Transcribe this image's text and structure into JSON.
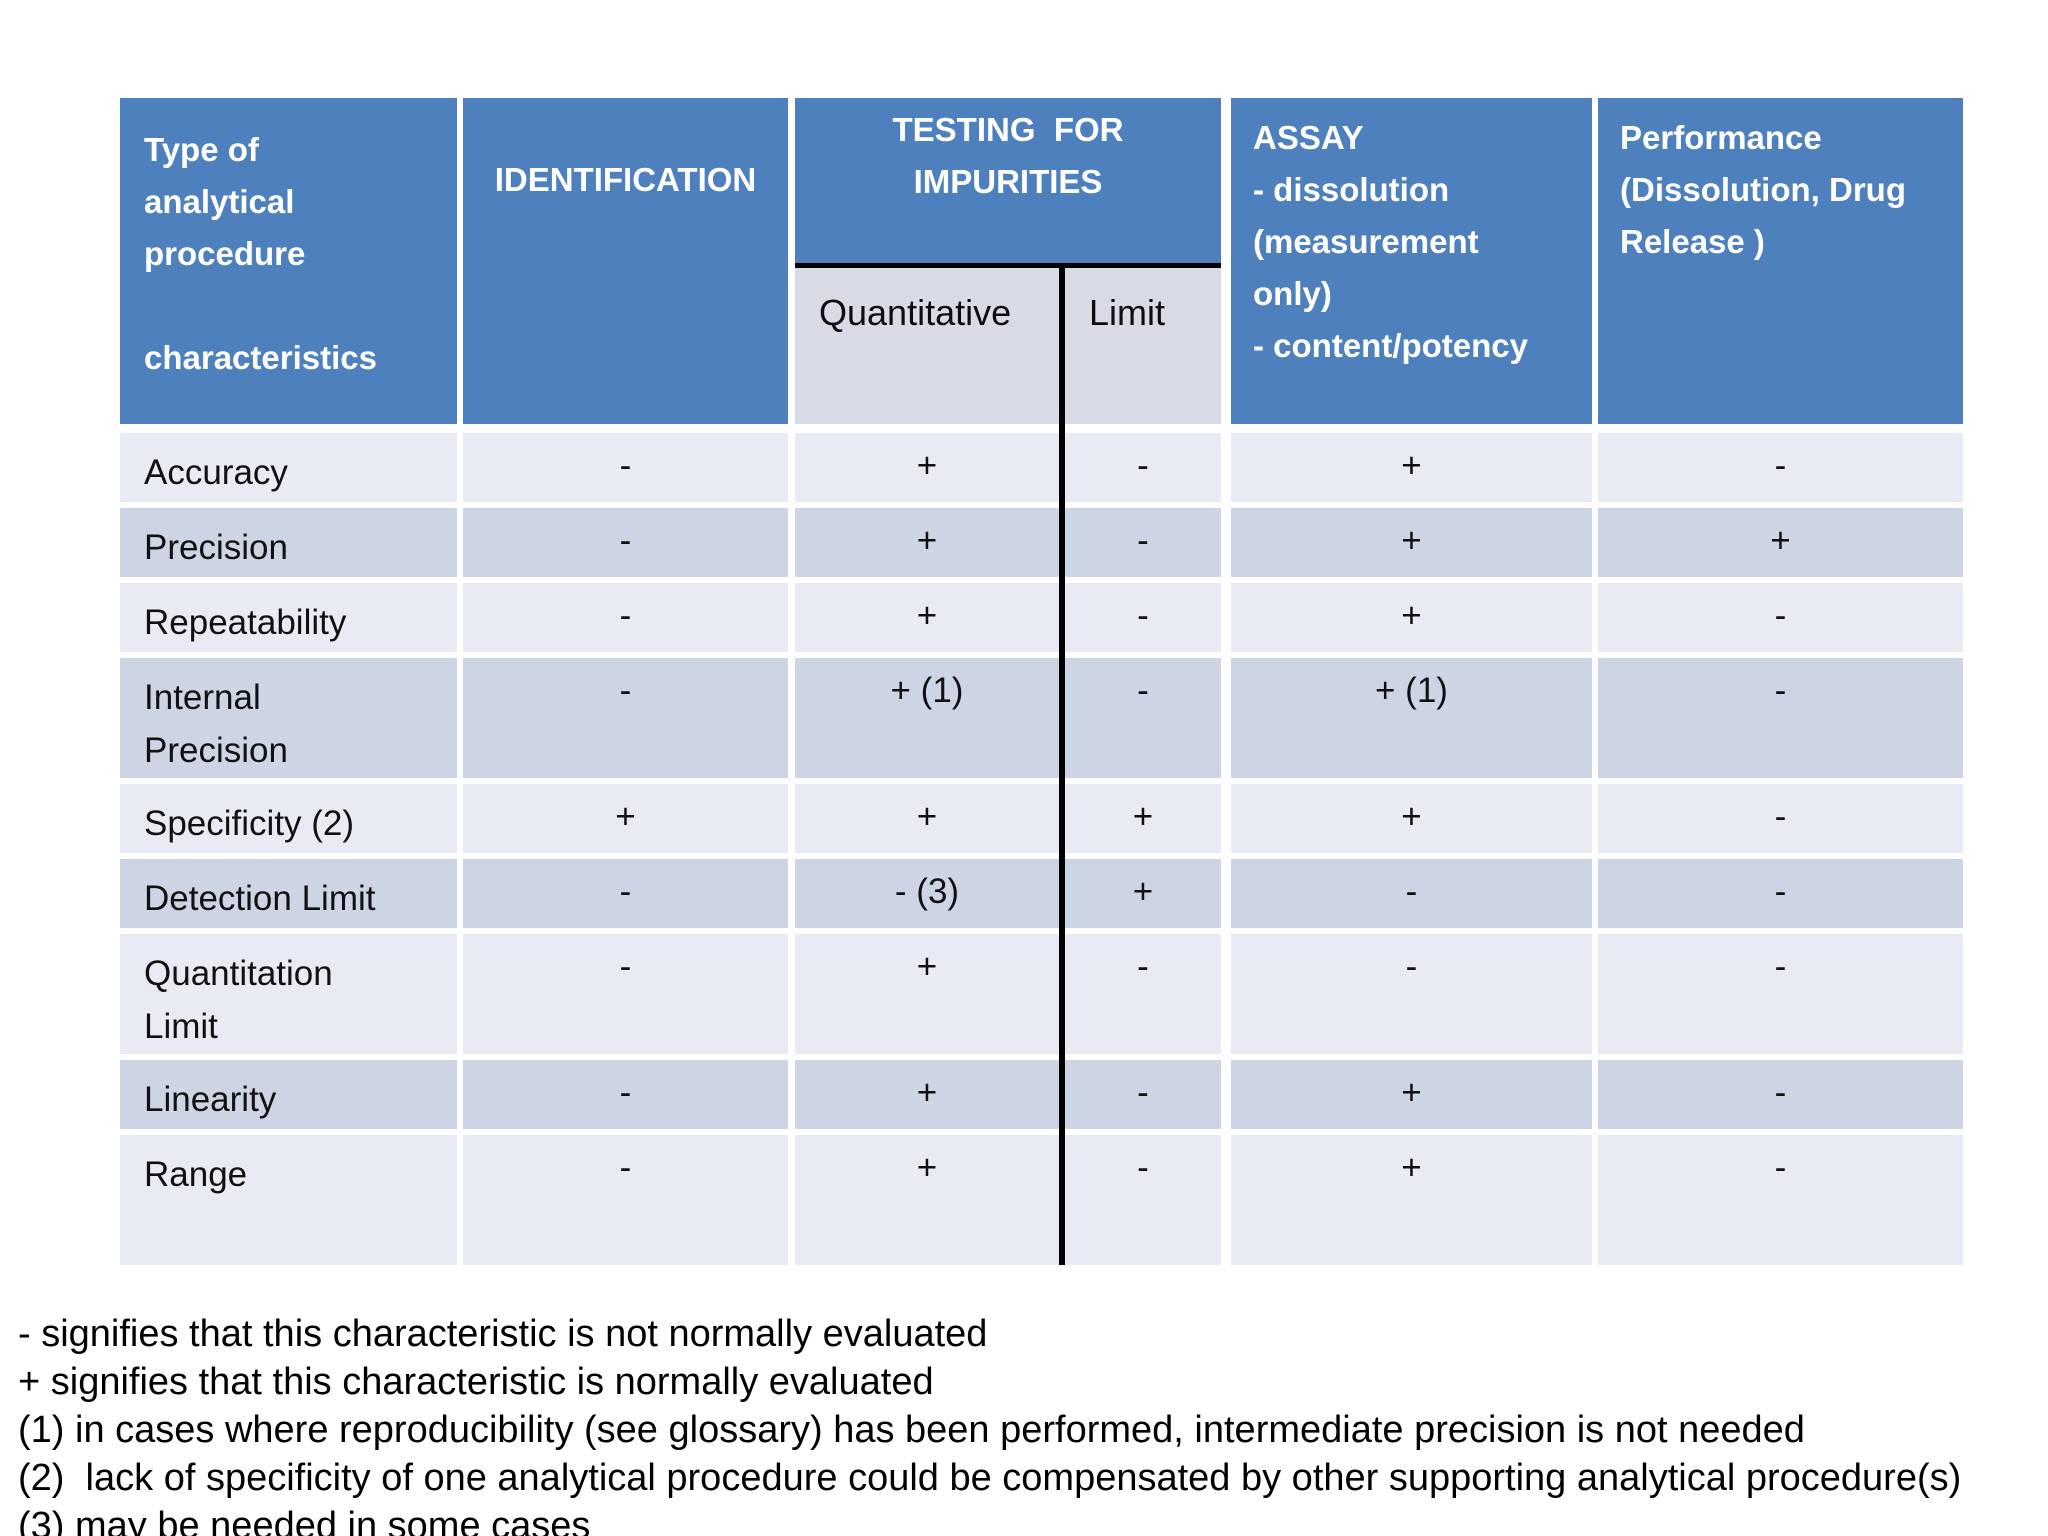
{
  "colors": {
    "header_bg": "#4E80BD",
    "row_light": "#E9EBF4",
    "row_dark": "#CDD4E3",
    "subheader_bg": "#D8DBE6",
    "divider": "#000000"
  },
  "table": {
    "header": {
      "characteristics": "Type of\nanalytical\nprocedure\n\ncharacteristics",
      "identification": "IDENTIFICATION",
      "impurities": "TESTING  FOR\nIMPURITIES",
      "impurities_sub": {
        "quantitative": "Quantitative",
        "limit": "Limit"
      },
      "assay": "ASSAY\n- dissolution\n(measurement\nonly)\n- content/potency",
      "performance": "Performance\n(Dissolution, Drug\nRelease )"
    },
    "rows": [
      {
        "label": "Accuracy",
        "identification": "-",
        "quantitative": "+",
        "limit": "-",
        "assay": "+",
        "performance": "-"
      },
      {
        "label": "Precision",
        "identification": "-",
        "quantitative": "+",
        "limit": "-",
        "assay": "+",
        "performance": "+"
      },
      {
        "label": "Repeatability",
        "identification": "-",
        "quantitative": "+",
        "limit": "-",
        "assay": "+",
        "performance": "-"
      },
      {
        "label": "Internal\nPrecision",
        "identification": "-",
        "quantitative": "+ (1)",
        "limit": "-",
        "assay": "+ (1)",
        "performance": "-"
      },
      {
        "label": "Specificity (2)",
        "identification": "+",
        "quantitative": "+",
        "limit": "+",
        "assay": "+",
        "performance": "-"
      },
      {
        "label": "Detection Limit",
        "identification": "-",
        "quantitative": "- (3)",
        "limit": "+",
        "assay": "-",
        "performance": "-"
      },
      {
        "label": "Quantitation\nLimit",
        "identification": "-",
        "quantitative": "+",
        "limit": "-",
        "assay": "-",
        "performance": "-"
      },
      {
        "label": "Linearity",
        "identification": "-",
        "quantitative": "+",
        "limit": "-",
        "assay": "+",
        "performance": "-"
      },
      {
        "label": "Range",
        "identification": "-",
        "quantitative": "+",
        "limit": "-",
        "assay": "+",
        "performance": "-"
      }
    ]
  },
  "footnotes": [
    "- signifies that this characteristic is not normally evaluated",
    "+ signifies that this characteristic is normally evaluated",
    "(1) in cases where reproducibility (see glossary) has been performed, intermediate precision is not needed",
    "(2)  lack of specificity of one analytical procedure could be compensated by other supporting analytical procedure(s)",
    "(3) may be needed in some cases"
  ]
}
